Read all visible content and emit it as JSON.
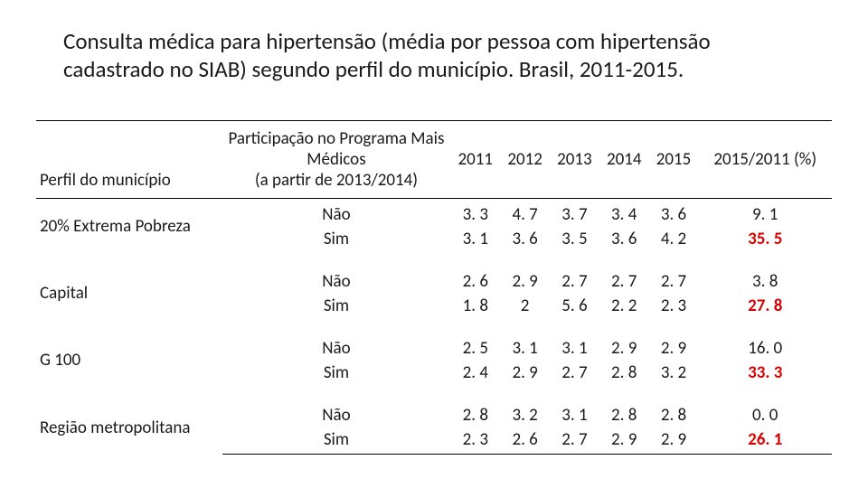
{
  "title": "Consulta médica para hipertensão (média por pessoa com hipertensão cadastrado no SIAB) segundo perfil do município. Brasil, 2011-2015.",
  "columns": {
    "profile": "Perfil do município",
    "participation": "Participação no Programa Mais Médicos\n(a partir de 2013/2014)",
    "y2011": "2011",
    "y2012": "2012",
    "y2013": "2013",
    "y2014": "2014",
    "y2015": "2015",
    "ratio": "2015/2011 (%)"
  },
  "labels": {
    "nao": "Não",
    "sim": "Sim"
  },
  "groups": [
    {
      "name": "20% Extrema Pobreza",
      "nao": {
        "y2011": "3. 3",
        "y2012": "4. 7",
        "y2013": "3. 7",
        "y2014": "3. 4",
        "y2015": "3. 6",
        "ratio": "9. 1"
      },
      "sim": {
        "y2011": "3. 1",
        "y2012": "3. 6",
        "y2013": "3. 5",
        "y2014": "3. 6",
        "y2015": "4. 2",
        "ratio": "35. 5"
      }
    },
    {
      "name": "Capital",
      "nao": {
        "y2011": "2. 6",
        "y2012": "2. 9",
        "y2013": "2. 7",
        "y2014": "2. 7",
        "y2015": "2. 7",
        "ratio": "3. 8"
      },
      "sim": {
        "y2011": "1. 8",
        "y2012": "2",
        "y2013": "5. 6",
        "y2014": "2. 2",
        "y2015": "2. 3",
        "ratio": "27. 8"
      }
    },
    {
      "name": "G 100",
      "nao": {
        "y2011": "2. 5",
        "y2012": "3. 1",
        "y2013": "3. 1",
        "y2014": "2. 9",
        "y2015": "2. 9",
        "ratio": "16. 0"
      },
      "sim": {
        "y2011": "2. 4",
        "y2012": "2. 9",
        "y2013": "2. 7",
        "y2014": "2. 8",
        "y2015": "3. 2",
        "ratio": "33. 3"
      }
    },
    {
      "name": "Região metropolitana",
      "nao": {
        "y2011": "2. 8",
        "y2012": "3. 2",
        "y2013": "3. 1",
        "y2014": "2. 8",
        "y2015": "2. 8",
        "ratio": "0. 0"
      },
      "sim": {
        "y2011": "2. 3",
        "y2012": "2. 6",
        "y2013": "2. 7",
        "y2014": "2. 9",
        "y2015": "2. 9",
        "ratio": "26. 1"
      }
    }
  ],
  "style": {
    "highlight_color": "#d60000",
    "text_color": "#1a1a1a",
    "background_color": "#ffffff",
    "title_fontsize": 25,
    "body_fontsize": 19
  }
}
